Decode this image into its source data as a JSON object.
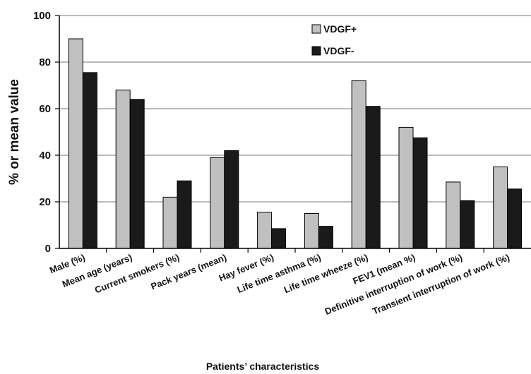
{
  "chart_data": {
    "type": "bar",
    "xlabel": "Patients’ characteristics",
    "ylabel": "% or mean value",
    "ylim": [
      0,
      100
    ],
    "yticks": [
      "0",
      "20",
      "40",
      "60",
      "80",
      "100"
    ],
    "grid": true,
    "legend_position": "top-right",
    "categories": [
      "Male (%)",
      "Mean age (years)",
      "Current smokers (%)",
      "Pack years (mean)",
      "Hay fever (%)",
      "Life time asthma (%)",
      "Life time wheeze (%)",
      "FEV1 (mean %)",
      "Definitive interruption of work (%)",
      "Transient interruption of work (%)"
    ],
    "series": [
      {
        "name": "VDGF+",
        "color": "#c0c0c0",
        "values": [
          90,
          68,
          22,
          39,
          15.5,
          15,
          72,
          52,
          28.5,
          35
        ]
      },
      {
        "name": "VDGF-",
        "color": "#1a1a1a",
        "values": [
          75.5,
          64,
          29,
          42,
          8.5,
          9.5,
          61,
          47.5,
          20.5,
          25.5
        ]
      }
    ]
  }
}
